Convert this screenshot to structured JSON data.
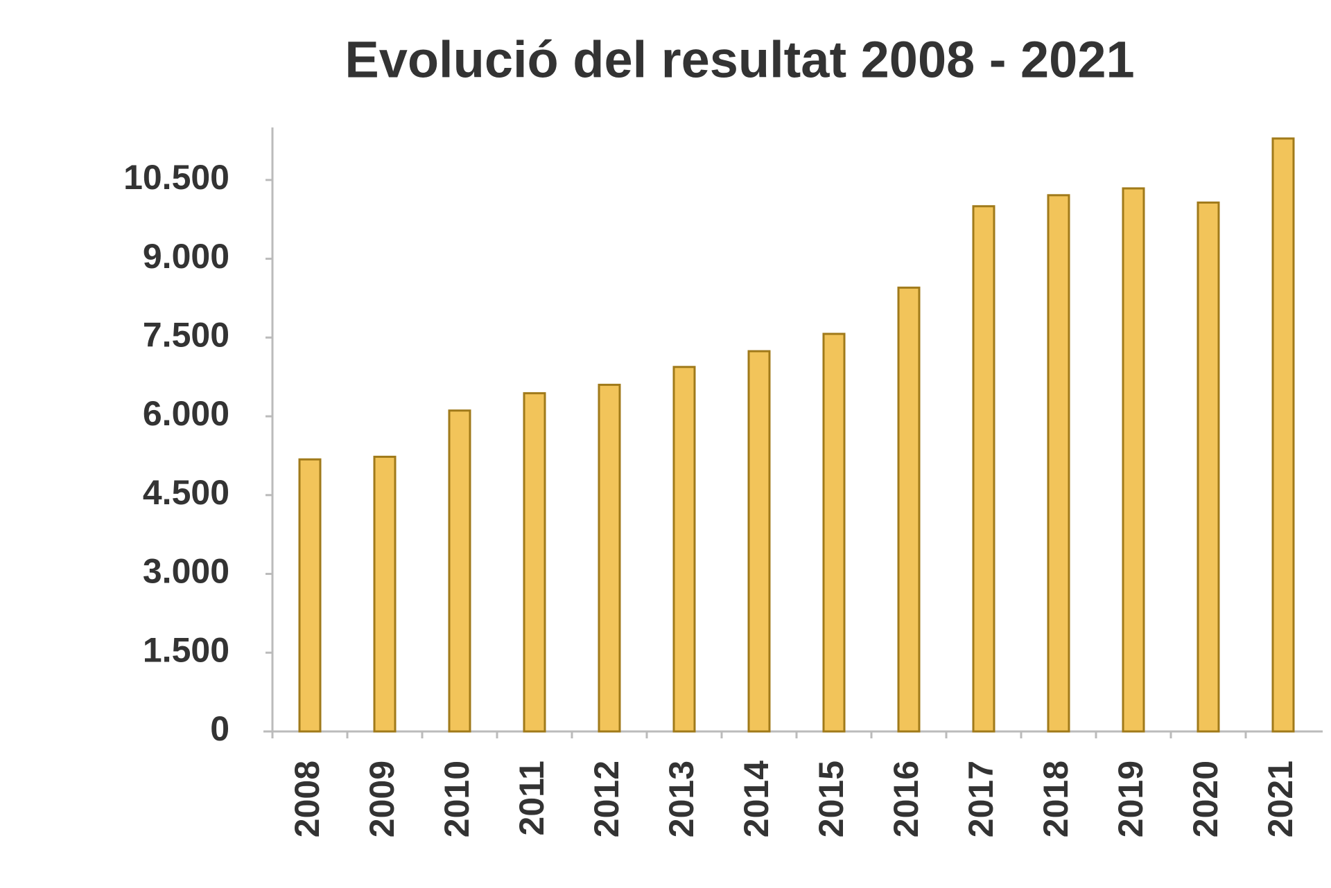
{
  "chart_data": {
    "type": "bar",
    "title": "Evolució del resultat 2008 - 2021",
    "categories": [
      "2008",
      "2009",
      "2010",
      "2011",
      "2012",
      "2013",
      "2014",
      "2015",
      "2016",
      "2017",
      "2018",
      "2019",
      "2020",
      "2021"
    ],
    "values": [
      5180,
      5230,
      6110,
      6440,
      6600,
      6940,
      7240,
      7570,
      8450,
      10000,
      10210,
      10340,
      10070,
      11290
    ],
    "color": "#f2c45a",
    "ylim": [
      0,
      11500
    ],
    "yticks": [
      0,
      {
        "value": 1500,
        "label": "1.500"
      },
      {
        "value": 3000,
        "label": "3.000"
      },
      {
        "value": 4500,
        "label": "4.500"
      },
      {
        "value": 6000,
        "label": "6.000"
      },
      {
        "value": 7500,
        "label": "7.500"
      },
      {
        "value": 9000,
        "label": "9.000"
      },
      {
        "value": 10500,
        "label": "10.500"
      }
    ],
    "grid": false
  }
}
